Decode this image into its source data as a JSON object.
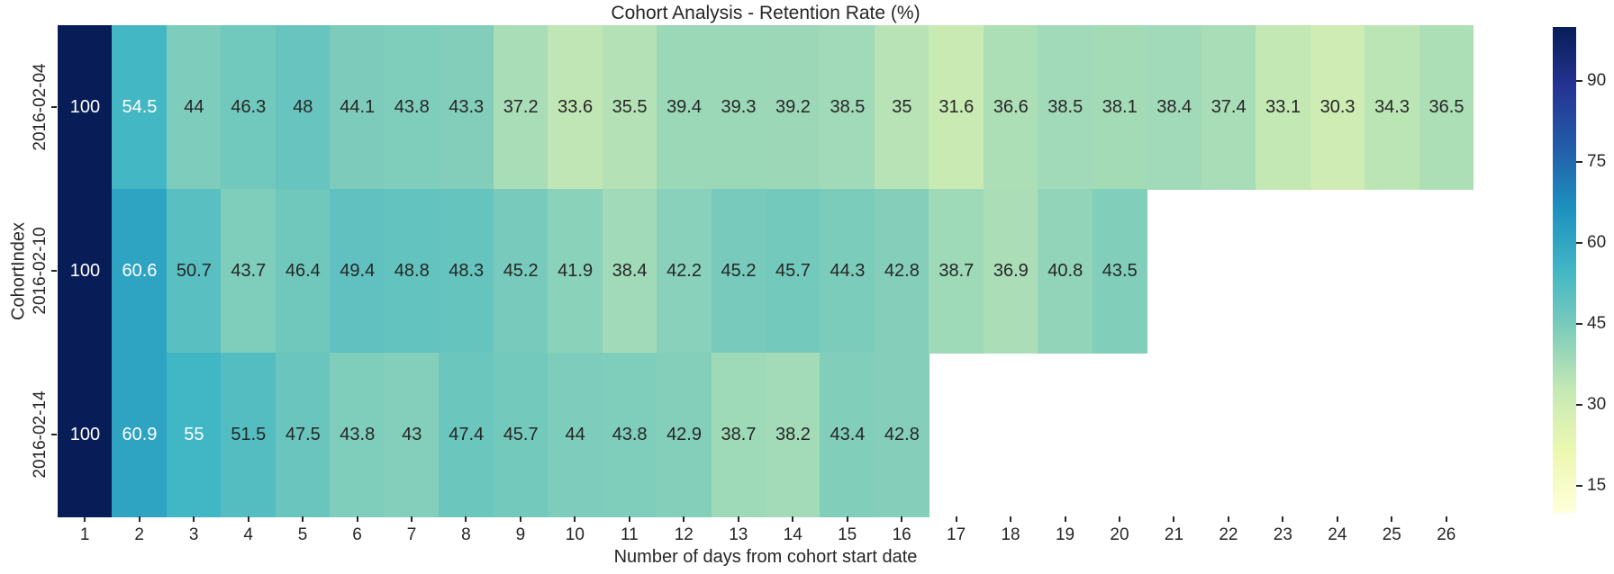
{
  "title": "Cohort Analysis - Retention Rate (%)",
  "chart_data": {
    "type": "heatmap",
    "title": "Cohort Analysis - Retention Rate (%)",
    "xlabel": "Number of days from cohort start date",
    "ylabel": "CohortIndex",
    "x_ticks": [
      1,
      2,
      3,
      4,
      5,
      6,
      7,
      8,
      9,
      10,
      11,
      12,
      13,
      14,
      15,
      16,
      17,
      18,
      19,
      20,
      21,
      22,
      23,
      24,
      25,
      26
    ],
    "rows": [
      {
        "label": "2016-02-04",
        "values": [
          100,
          54.5,
          44,
          46.3,
          48,
          44.1,
          43.8,
          43.3,
          37.2,
          33.6,
          35.5,
          39.4,
          39.3,
          39.2,
          38.5,
          35,
          31.6,
          36.6,
          38.5,
          38.1,
          38.4,
          37.4,
          33.1,
          30.3,
          34.3,
          36.5
        ]
      },
      {
        "label": "2016-02-10",
        "values": [
          100,
          60.6,
          50.7,
          43.7,
          46.4,
          49.4,
          48.8,
          48.3,
          45.2,
          41.9,
          38.4,
          42.2,
          45.2,
          45.7,
          44.3,
          42.8,
          38.7,
          36.9,
          40.8,
          43.5
        ]
      },
      {
        "label": "2016-02-14",
        "values": [
          100,
          60.9,
          55,
          51.5,
          47.5,
          43.8,
          43,
          47.4,
          45.7,
          44,
          43.8,
          42.9,
          38.7,
          38.2,
          43.4,
          42.8
        ]
      }
    ],
    "colormap": "YlGnBu",
    "colormap_stops": [
      "#ffffd9",
      "#edf8b1",
      "#c7e9b4",
      "#7fcdbb",
      "#41b6c4",
      "#1d91c0",
      "#225ea8",
      "#253494",
      "#081d58"
    ],
    "vmin": 10,
    "vmax": 100,
    "colorbar_ticks": [
      90,
      75,
      60,
      45,
      30,
      15
    ],
    "legend_position": "right",
    "grid": false,
    "annotation_text_colors": {
      "dark": "#262626",
      "light": "#ffffff"
    }
  }
}
